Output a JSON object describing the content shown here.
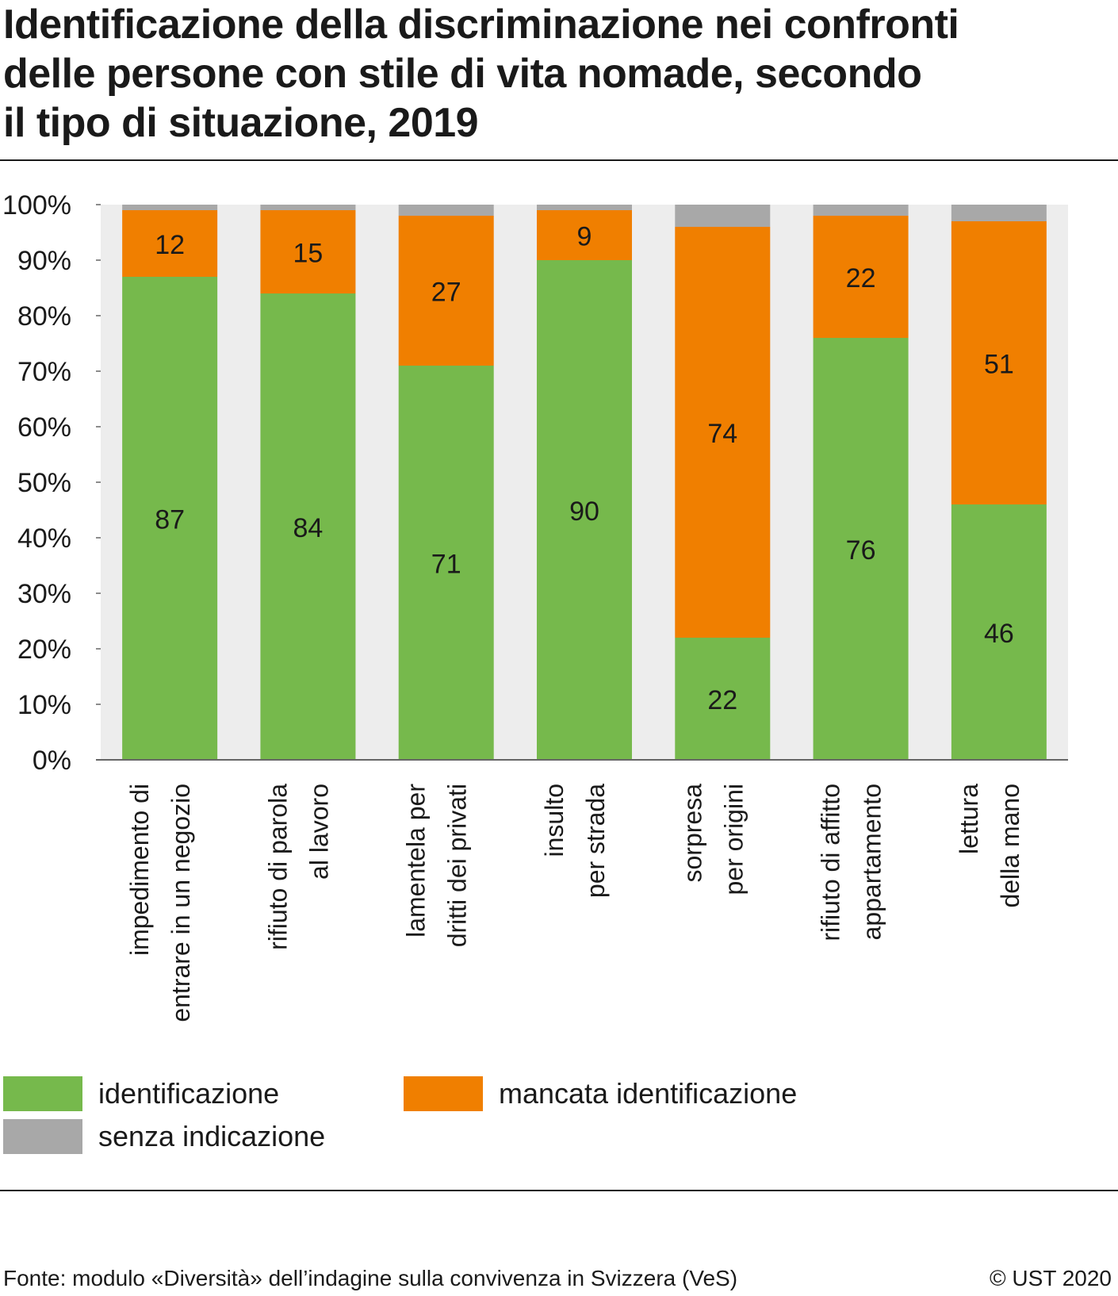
{
  "title_lines": [
    "Identificazione della discriminazione nei confronti",
    "delle persone con stile di vita nomade, secondo",
    "il tipo di situazione, 2019"
  ],
  "chart_data": {
    "type": "bar",
    "stacked": true,
    "orientation": "vertical",
    "categories": [
      [
        "impedimento di",
        "entrare in un negozio"
      ],
      [
        "rifiuto di parola",
        "al lavoro"
      ],
      [
        "lamentela per",
        "dritti dei privati"
      ],
      [
        "insulto",
        "per strada"
      ],
      [
        "sorpresa",
        "per origini"
      ],
      [
        "rifiuto di affitto",
        "appartamento"
      ],
      [
        "lettura",
        "della mano"
      ]
    ],
    "series": [
      {
        "name": "identificazione",
        "color": "#76b94c",
        "values": [
          87,
          84,
          71,
          90,
          22,
          76,
          46
        ]
      },
      {
        "name": "mancata identificazione",
        "color": "#f07f00",
        "values": [
          12,
          15,
          27,
          9,
          74,
          22,
          51
        ]
      },
      {
        "name": "senza indicazione",
        "color": "#a8a8a8",
        "values": [
          1,
          1,
          2,
          1,
          4,
          2,
          3
        ]
      }
    ],
    "value_labels_series": [
      "identificazione",
      "mancata identificazione"
    ],
    "yticks": [
      "0%",
      "10%",
      "20%",
      "30%",
      "40%",
      "50%",
      "60%",
      "70%",
      "80%",
      "90%",
      "100%"
    ],
    "ylim": [
      0,
      100
    ],
    "plot_background": "#ededed",
    "legend_position": "bottom"
  },
  "legend": {
    "identificazione": "identificazione",
    "mancata": "mancata identificazione",
    "senza": "senza indicazione"
  },
  "colors": {
    "identificazione": "#76b94c",
    "mancata": "#f07f00",
    "senza": "#a8a8a8"
  },
  "footer": {
    "source": "Fonte: modulo «Diversità» dell’indagine sulla convivenza in Svizzera (VeS)",
    "copyright": "© UST 2020"
  }
}
